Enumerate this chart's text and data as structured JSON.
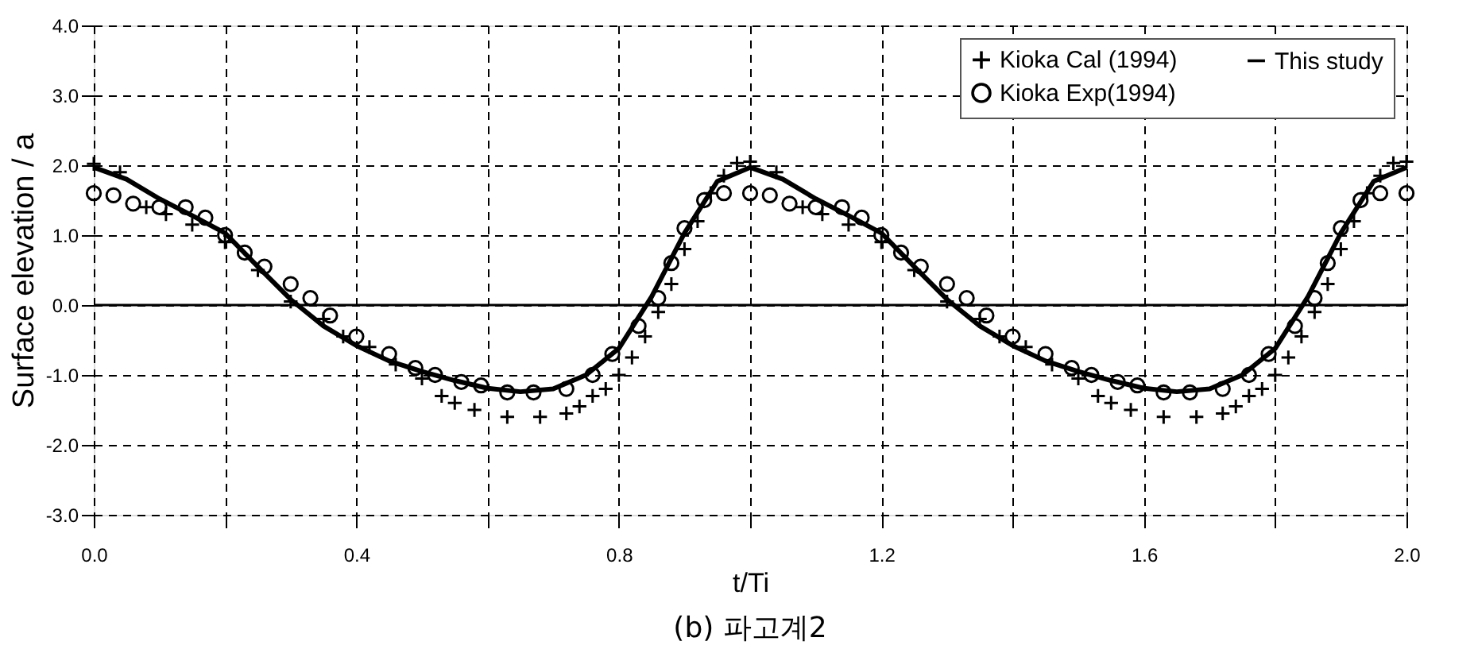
{
  "chart_data": {
    "type": "line",
    "xlabel": "t/Ti",
    "ylabel": "Surface elevation / a",
    "annotations": [
      "(b) 파고계2"
    ],
    "xlim": [
      0,
      2
    ],
    "ylim": [
      -3,
      4
    ],
    "xticks": [
      {
        "value": 0,
        "label": "0.0"
      },
      {
        "value": 0.2,
        "label": null
      },
      {
        "value": 0.4,
        "label": "0.4"
      },
      {
        "value": 0.6,
        "label": null
      },
      {
        "value": 0.8,
        "label": "0.8"
      },
      {
        "value": 1.0,
        "label": null
      },
      {
        "value": 1.2,
        "label": "1.2"
      },
      {
        "value": 1.4,
        "label": null
      },
      {
        "value": 1.6,
        "label": "1.6"
      },
      {
        "value": 1.8,
        "label": null
      },
      {
        "value": 2.0,
        "label": "2.0"
      }
    ],
    "yticks": [
      {
        "value": -3,
        "label": "-3.0"
      },
      {
        "value": -2,
        "label": "-2.0"
      },
      {
        "value": -1,
        "label": "-1.0"
      },
      {
        "value": 0,
        "label": "0.0"
      },
      {
        "value": 1,
        "label": "1.0"
      },
      {
        "value": 2,
        "label": "2.0"
      },
      {
        "value": 3,
        "label": "3.0"
      },
      {
        "value": 4,
        "label": "4.0"
      }
    ],
    "grid": true,
    "legend": "top right",
    "ref_lines": [
      {
        "axis": "y",
        "value": 0,
        "color": "#000000",
        "line_style": "solid"
      }
    ],
    "series": [
      {
        "name": "Kioka Cal (1994)",
        "type": "scatter",
        "marker": "cross",
        "color": "#000000",
        "x": [
          0,
          0.04,
          0.08,
          0.11,
          0.15,
          0.2,
          0.25,
          0.3,
          0.35,
          0.38,
          0.42,
          0.46,
          0.5,
          0.53,
          0.55,
          0.58,
          0.63,
          0.68,
          0.72,
          0.74,
          0.76,
          0.78,
          0.8,
          0.82,
          0.84,
          0.86,
          0.88,
          0.9,
          0.92,
          0.94,
          0.96,
          0.98,
          1.0,
          1.04,
          1.08,
          1.11,
          1.15,
          1.2,
          1.25,
          1.3,
          1.35,
          1.38,
          1.42,
          1.46,
          1.5,
          1.53,
          1.55,
          1.58,
          1.63,
          1.68,
          1.72,
          1.74,
          1.76,
          1.78,
          1.8,
          1.82,
          1.84,
          1.86,
          1.88,
          1.9,
          1.92,
          1.94,
          1.96,
          1.98,
          2.0
        ],
        "values": [
          2.02,
          1.9,
          1.4,
          1.3,
          1.15,
          0.9,
          0.5,
          0.05,
          -0.2,
          -0.45,
          -0.6,
          -0.85,
          -1.05,
          -1.3,
          -1.4,
          -1.5,
          -1.6,
          -1.6,
          -1.55,
          -1.45,
          -1.3,
          -1.2,
          -1.0,
          -0.75,
          -0.45,
          -0.1,
          0.3,
          0.8,
          1.2,
          1.6,
          1.85,
          2.03,
          2.05,
          1.9,
          1.4,
          1.3,
          1.15,
          0.9,
          0.5,
          0.05,
          -0.2,
          -0.45,
          -0.6,
          -0.85,
          -1.05,
          -1.3,
          -1.4,
          -1.5,
          -1.6,
          -1.6,
          -1.55,
          -1.45,
          -1.3,
          -1.2,
          -1.0,
          -0.75,
          -0.45,
          -0.1,
          0.3,
          0.8,
          1.2,
          1.6,
          1.85,
          2.03,
          2.05
        ]
      },
      {
        "name": "Kioka Exp(1994)",
        "type": "scatter",
        "marker": "circle",
        "color": "#000000",
        "x": [
          0,
          0.03,
          0.06,
          0.1,
          0.14,
          0.17,
          0.2,
          0.23,
          0.26,
          0.3,
          0.33,
          0.36,
          0.4,
          0.45,
          0.49,
          0.52,
          0.56,
          0.59,
          0.63,
          0.67,
          0.72,
          0.76,
          0.79,
          0.83,
          0.86,
          0.88,
          0.9,
          0.93,
          0.96,
          1.0,
          1.03,
          1.06,
          1.1,
          1.14,
          1.17,
          1.2,
          1.23,
          1.26,
          1.3,
          1.33,
          1.36,
          1.4,
          1.45,
          1.49,
          1.52,
          1.56,
          1.59,
          1.63,
          1.67,
          1.72,
          1.76,
          1.79,
          1.83,
          1.86,
          1.88,
          1.9,
          1.93,
          1.96,
          2.0
        ],
        "values": [
          1.6,
          1.57,
          1.45,
          1.4,
          1.4,
          1.25,
          1.0,
          0.75,
          0.55,
          0.3,
          0.1,
          -0.15,
          -0.45,
          -0.7,
          -0.9,
          -1.0,
          -1.1,
          -1.15,
          -1.25,
          -1.25,
          -1.2,
          -1.0,
          -0.7,
          -0.3,
          0.1,
          0.6,
          1.1,
          1.5,
          1.6,
          1.6,
          1.57,
          1.45,
          1.4,
          1.4,
          1.25,
          1.0,
          0.75,
          0.55,
          0.3,
          0.1,
          -0.15,
          -0.45,
          -0.7,
          -0.9,
          -1.0,
          -1.1,
          -1.15,
          -1.25,
          -1.25,
          -1.2,
          -1.0,
          -0.7,
          -0.3,
          0.1,
          0.6,
          1.1,
          1.5,
          1.6,
          1.6
        ]
      },
      {
        "name": "This study",
        "type": "line",
        "marker": "none",
        "line_style": "solid",
        "color": "#000000",
        "x": [
          0,
          0.05,
          0.1,
          0.15,
          0.2,
          0.25,
          0.3,
          0.35,
          0.4,
          0.45,
          0.5,
          0.55,
          0.6,
          0.65,
          0.7,
          0.75,
          0.8,
          0.85,
          0.9,
          0.95,
          1.0,
          1.05,
          1.1,
          1.15,
          1.2,
          1.25,
          1.3,
          1.35,
          1.4,
          1.45,
          1.5,
          1.55,
          1.6,
          1.65,
          1.7,
          1.75,
          1.8,
          1.85,
          1.9,
          1.95,
          2.0
        ],
        "values": [
          1.97,
          1.8,
          1.52,
          1.28,
          1.03,
          0.55,
          0.08,
          -0.3,
          -0.58,
          -0.8,
          -0.95,
          -1.08,
          -1.19,
          -1.24,
          -1.2,
          -1.0,
          -0.62,
          0.12,
          1.03,
          1.77,
          1.97,
          1.8,
          1.52,
          1.28,
          1.03,
          0.55,
          0.08,
          -0.3,
          -0.58,
          -0.8,
          -0.95,
          -1.08,
          -1.19,
          -1.24,
          -1.2,
          -1.0,
          -0.62,
          0.12,
          1.03,
          1.77,
          1.97
        ]
      }
    ]
  }
}
